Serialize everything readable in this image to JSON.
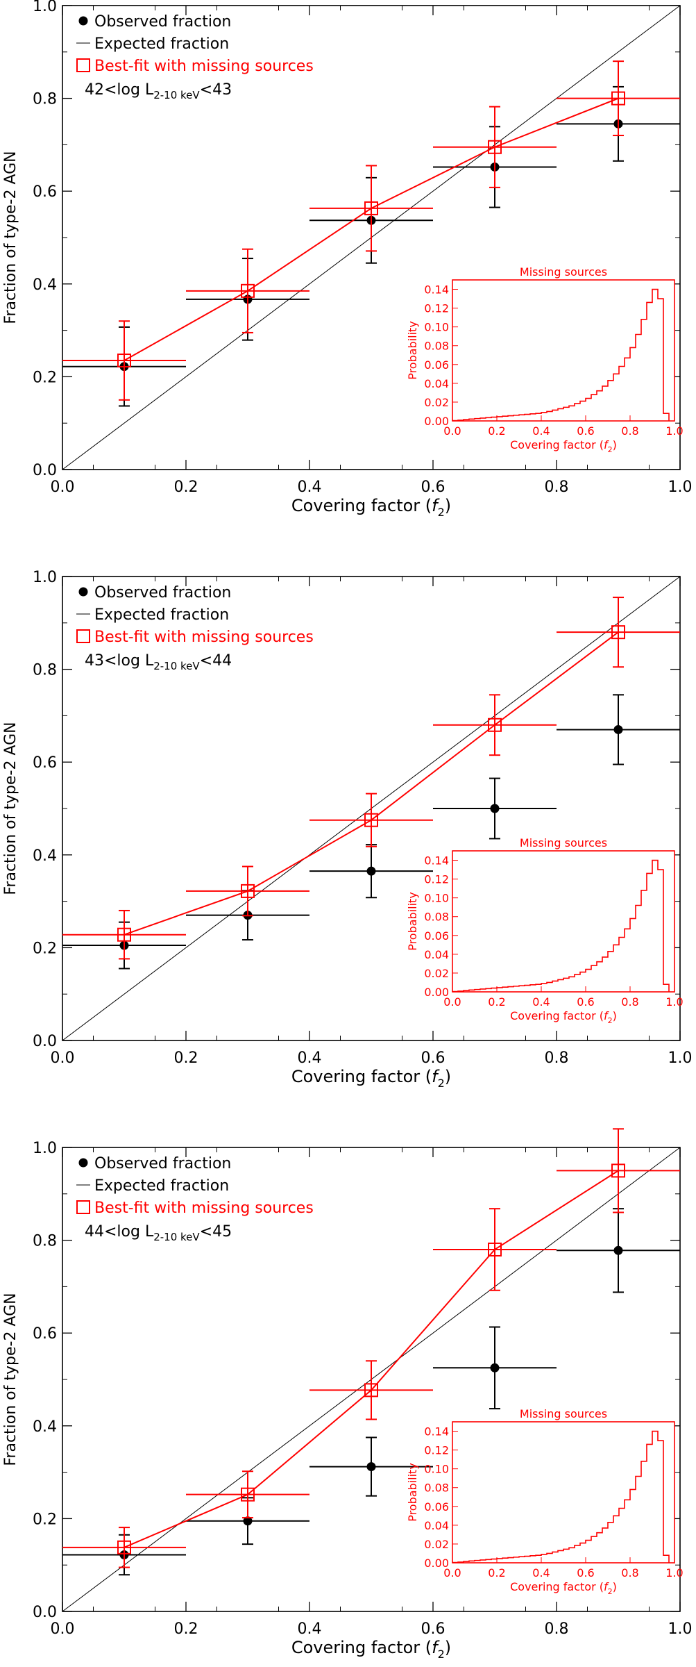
{
  "colors": {
    "observed": "#000000",
    "bestfit": "#ff0000",
    "expected": "#000000",
    "inset": "#ff0000",
    "axes": "#000000"
  },
  "chart_data": [
    {
      "type": "scatter",
      "xlabel_main": "Covering factor (",
      "xlabel_sym": "f",
      "xlabel_sub": "2",
      "xlabel_close": ")",
      "ylabel": "Fraction of type-2 AGN",
      "xlim": [
        0,
        1.0
      ],
      "ylim": [
        0,
        1.0
      ],
      "xticks": [
        "0.0",
        "0.2",
        "0.4",
        "0.6",
        "0.8",
        "1.0"
      ],
      "yticks": [
        "0.0",
        "0.2",
        "0.4",
        "0.6",
        "0.8",
        "1.0"
      ],
      "legend": {
        "observed": "Observed fraction",
        "expected": "Expected fraction",
        "bestfit": "Best-fit with missing sources",
        "lum_pre": "42<log L",
        "lum_sub": "2-10 keV",
        "lum_post": "<43"
      },
      "legend_position": "top-left",
      "series": [
        {
          "name": "Observed fraction",
          "x": [
            0.1,
            0.3,
            0.5,
            0.7,
            0.9
          ],
          "y": [
            0.222,
            0.367,
            0.537,
            0.652,
            0.745
          ],
          "xerr": 0.1,
          "yerr": [
            0.085,
            0.088,
            0.092,
            0.087,
            0.08
          ]
        },
        {
          "name": "Best-fit with missing sources",
          "x": [
            0.1,
            0.3,
            0.5,
            0.7,
            0.9
          ],
          "y": [
            0.235,
            0.385,
            0.563,
            0.695,
            0.8
          ],
          "xerr": 0.1,
          "yerr": [
            0.085,
            0.09,
            0.092,
            0.087,
            0.08
          ]
        },
        {
          "name": "Expected fraction",
          "x": [
            0,
            1.0
          ],
          "y": [
            0,
            1.0
          ]
        }
      ],
      "inset": {
        "title": "Missing sources",
        "xlabel_main": "Covering factor (",
        "xlabel_sym": "f",
        "xlabel_sub": "2",
        "xlabel_close": ")",
        "ylabel": "Probability",
        "xticks": [
          "0.0",
          "0.2",
          "0.4",
          "0.6",
          "0.8",
          "1.0"
        ],
        "yticks": [
          "0.00",
          "0.02",
          "0.04",
          "0.06",
          "0.08",
          "0.10",
          "0.12",
          "0.14"
        ],
        "xlim": [
          0,
          1.0
        ],
        "ylim": [
          0,
          0.15
        ],
        "bin_width": 0.025,
        "hist": [
          0.0003,
          0.0008,
          0.0014,
          0.002,
          0.0025,
          0.003,
          0.0035,
          0.004,
          0.0045,
          0.005,
          0.0055,
          0.006,
          0.0065,
          0.007,
          0.0075,
          0.008,
          0.009,
          0.01,
          0.0115,
          0.013,
          0.0145,
          0.016,
          0.0185,
          0.021,
          0.024,
          0.028,
          0.032,
          0.037,
          0.043,
          0.05,
          0.058,
          0.067,
          0.078,
          0.092,
          0.108,
          0.126,
          0.14,
          0.13,
          0.008
        ]
      }
    },
    {
      "type": "scatter",
      "xlabel_main": "Covering factor (",
      "xlabel_sym": "f",
      "xlabel_sub": "2",
      "xlabel_close": ")",
      "ylabel": "Fraction of type-2 AGN",
      "xlim": [
        0,
        1.0
      ],
      "ylim": [
        0,
        1.0
      ],
      "xticks": [
        "0.0",
        "0.2",
        "0.4",
        "0.6",
        "0.8",
        "1.0"
      ],
      "yticks": [
        "0.0",
        "0.2",
        "0.4",
        "0.6",
        "0.8",
        "1.0"
      ],
      "legend": {
        "observed": "Observed fraction",
        "expected": "Expected fraction",
        "bestfit": "Best-fit with missing sources",
        "lum_pre": "43<log L",
        "lum_sub": "2-10 keV",
        "lum_post": "<44"
      },
      "legend_position": "top-left",
      "series": [
        {
          "name": "Observed fraction",
          "x": [
            0.1,
            0.3,
            0.5,
            0.7,
            0.9
          ],
          "y": [
            0.205,
            0.27,
            0.365,
            0.5,
            0.67
          ],
          "xerr": 0.1,
          "yerr": [
            0.05,
            0.053,
            0.057,
            0.065,
            0.075
          ]
        },
        {
          "name": "Best-fit with missing sources",
          "x": [
            0.1,
            0.3,
            0.5,
            0.7,
            0.9
          ],
          "y": [
            0.228,
            0.322,
            0.475,
            0.68,
            0.88
          ],
          "xerr": 0.1,
          "yerr": [
            0.052,
            0.053,
            0.057,
            0.065,
            0.075
          ]
        },
        {
          "name": "Expected fraction",
          "x": [
            0,
            1.0
          ],
          "y": [
            0,
            1.0
          ]
        }
      ],
      "inset": {
        "title": "Missing sources",
        "xlabel_main": "Covering factor (",
        "xlabel_sym": "f",
        "xlabel_sub": "2",
        "xlabel_close": ")",
        "ylabel": "Probability",
        "xticks": [
          "0.0",
          "0.2",
          "0.4",
          "0.6",
          "0.8",
          "1.0"
        ],
        "yticks": [
          "0.00",
          "0.02",
          "0.04",
          "0.06",
          "0.08",
          "0.10",
          "0.12",
          "0.14"
        ],
        "xlim": [
          0,
          1.0
        ],
        "ylim": [
          0,
          0.15
        ],
        "bin_width": 0.025,
        "hist": [
          0.0003,
          0.0008,
          0.0014,
          0.002,
          0.0025,
          0.003,
          0.0035,
          0.004,
          0.0045,
          0.005,
          0.0055,
          0.006,
          0.0065,
          0.007,
          0.0075,
          0.008,
          0.009,
          0.01,
          0.0115,
          0.013,
          0.0145,
          0.016,
          0.0185,
          0.021,
          0.024,
          0.028,
          0.032,
          0.037,
          0.043,
          0.05,
          0.058,
          0.067,
          0.078,
          0.092,
          0.108,
          0.126,
          0.14,
          0.13,
          0.008
        ]
      }
    },
    {
      "type": "scatter",
      "xlabel_main": "Covering factor (",
      "xlabel_sym": "f",
      "xlabel_sub": "2",
      "xlabel_close": ")",
      "ylabel": "Fraction of type-2 AGN",
      "xlim": [
        0,
        1.0
      ],
      "ylim": [
        0,
        1.0
      ],
      "xticks": [
        "0.0",
        "0.2",
        "0.4",
        "0.6",
        "0.8",
        "1.0"
      ],
      "yticks": [
        "0.0",
        "0.2",
        "0.4",
        "0.6",
        "0.8",
        "1.0"
      ],
      "legend": {
        "observed": "Observed fraction",
        "expected": "Expected fraction",
        "bestfit": "Best-fit with missing sources",
        "lum_pre": "44<log L",
        "lum_sub": "2-10 keV",
        "lum_post": "<45"
      },
      "legend_position": "top-left",
      "series": [
        {
          "name": "Observed fraction",
          "x": [
            0.1,
            0.3,
            0.5,
            0.7,
            0.9
          ],
          "y": [
            0.122,
            0.195,
            0.312,
            0.525,
            0.778
          ],
          "xerr": 0.1,
          "yerr": [
            0.043,
            0.05,
            0.063,
            0.088,
            0.09
          ]
        },
        {
          "name": "Best-fit with missing sources",
          "x": [
            0.1,
            0.3,
            0.5,
            0.7,
            0.9
          ],
          "y": [
            0.138,
            0.252,
            0.477,
            0.78,
            0.95
          ],
          "xerr": 0.1,
          "yerr": [
            0.043,
            0.05,
            0.063,
            0.088,
            0.09
          ]
        },
        {
          "name": "Expected fraction",
          "x": [
            0,
            1.0
          ],
          "y": [
            0,
            1.0
          ]
        }
      ],
      "inset": {
        "title": "Missing sources",
        "xlabel_main": "Covering factor (",
        "xlabel_sym": "f",
        "xlabel_sub": "2",
        "xlabel_close": ")",
        "ylabel": "Probability",
        "xticks": [
          "0.0",
          "0.2",
          "0.4",
          "0.6",
          "0.8",
          "1.0"
        ],
        "yticks": [
          "0.00",
          "0.02",
          "0.04",
          "0.06",
          "0.08",
          "0.10",
          "0.12",
          "0.14"
        ],
        "xlim": [
          0,
          1.0
        ],
        "ylim": [
          0,
          0.15
        ],
        "bin_width": 0.025,
        "hist": [
          0.0003,
          0.0008,
          0.0014,
          0.002,
          0.0025,
          0.003,
          0.0035,
          0.004,
          0.0045,
          0.005,
          0.0055,
          0.006,
          0.0065,
          0.007,
          0.0075,
          0.008,
          0.009,
          0.01,
          0.0115,
          0.013,
          0.0145,
          0.016,
          0.0185,
          0.021,
          0.024,
          0.028,
          0.032,
          0.037,
          0.043,
          0.05,
          0.058,
          0.067,
          0.078,
          0.092,
          0.108,
          0.126,
          0.14,
          0.13,
          0.008
        ]
      }
    }
  ]
}
